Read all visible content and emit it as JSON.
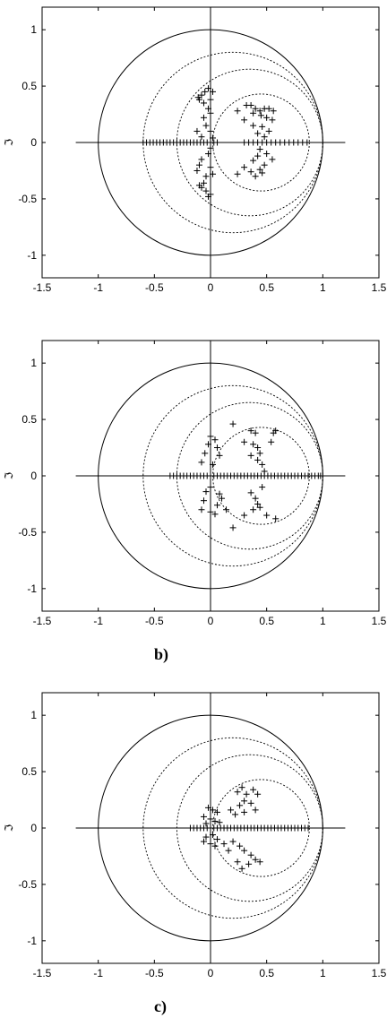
{
  "colors": {
    "axes": "#000000",
    "background": "#ffffff",
    "unit_circle": "#000000",
    "dotted_circles": "#000000",
    "markers": "#000000"
  },
  "captions": {
    "b": "b)",
    "c": "c)"
  },
  "chart_data": [
    {
      "type": "scatter",
      "title": "",
      "xlabel": "",
      "ylabel": "ℑ",
      "xlim": [
        -1.5,
        1.5
      ],
      "ylim": [
        -1.2,
        1.2
      ],
      "x_ticks": [
        "-1.5",
        "-1",
        "-0.5",
        "0",
        "0.5",
        "1",
        "1.5"
      ],
      "y_ticks": [
        "-1",
        "-0.5",
        "0",
        "0.5",
        "1"
      ],
      "marker": "+",
      "grid": false,
      "circles": [
        {
          "cx": 0,
          "cy": 0,
          "r": 1.0,
          "style": "solid"
        },
        {
          "cx": 0.2,
          "cy": 0,
          "r": 0.8,
          "style": "dotted"
        },
        {
          "cx": 0.35,
          "cy": 0,
          "r": 0.65,
          "style": "dotted"
        },
        {
          "cx": 0.45,
          "cy": 0,
          "r": 0.43,
          "style": "dotted"
        }
      ],
      "real_axis_points": [
        -0.6,
        -0.57,
        -0.54,
        -0.51,
        -0.48,
        -0.45,
        -0.42,
        -0.39,
        -0.36,
        -0.33,
        -0.3,
        -0.27,
        -0.24,
        -0.21,
        -0.18,
        -0.15,
        -0.12,
        -0.09,
        -0.06,
        -0.03,
        0.0,
        0.03,
        0.06,
        0.3,
        0.34,
        0.38,
        0.42,
        0.46,
        0.5,
        0.54,
        0.58,
        0.62,
        0.66,
        0.7,
        0.74,
        0.78,
        0.82,
        0.86
      ],
      "points": [
        [
          -0.08,
          0.42
        ],
        [
          -0.05,
          0.45
        ],
        [
          -0.02,
          0.48
        ],
        [
          0.02,
          0.45
        ],
        [
          -0.1,
          0.38
        ],
        [
          -0.06,
          0.35
        ],
        [
          0.0,
          0.38
        ],
        [
          -0.11,
          0.4
        ],
        [
          -0.02,
          0.3
        ],
        [
          0.0,
          0.26
        ],
        [
          -0.06,
          0.22
        ],
        [
          -0.04,
          0.15
        ],
        [
          0.0,
          0.1
        ],
        [
          0.02,
          0.04
        ],
        [
          -0.12,
          0.1
        ],
        [
          -0.08,
          0.05
        ],
        [
          0.0,
          -0.05
        ],
        [
          -0.02,
          -0.1
        ],
        [
          -0.08,
          -0.15
        ],
        [
          -0.1,
          -0.2
        ],
        [
          -0.12,
          -0.25
        ],
        [
          0.0,
          -0.22
        ],
        [
          -0.04,
          -0.3
        ],
        [
          0.02,
          -0.28
        ],
        [
          -0.06,
          -0.36
        ],
        [
          -0.1,
          -0.38
        ],
        [
          -0.04,
          -0.43
        ],
        [
          0.0,
          -0.46
        ],
        [
          -0.08,
          -0.4
        ],
        [
          -0.02,
          -0.48
        ],
        [
          0.36,
          0.33
        ],
        [
          0.4,
          0.3
        ],
        [
          0.44,
          0.28
        ],
        [
          0.48,
          0.3
        ],
        [
          0.38,
          0.26
        ],
        [
          0.45,
          0.24
        ],
        [
          0.3,
          0.2
        ],
        [
          0.5,
          0.22
        ],
        [
          0.55,
          0.2
        ],
        [
          0.38,
          0.15
        ],
        [
          0.46,
          0.14
        ],
        [
          0.52,
          0.1
        ],
        [
          0.42,
          0.08
        ],
        [
          0.48,
          0.05
        ],
        [
          0.44,
          -0.06
        ],
        [
          0.5,
          -0.1
        ],
        [
          0.42,
          -0.12
        ],
        [
          0.55,
          -0.15
        ],
        [
          0.38,
          -0.16
        ],
        [
          0.48,
          -0.2
        ],
        [
          0.3,
          -0.22
        ],
        [
          0.36,
          -0.26
        ],
        [
          0.4,
          -0.3
        ],
        [
          0.46,
          -0.27
        ],
        [
          0.44,
          -0.24
        ],
        [
          0.24,
          -0.28
        ],
        [
          0.24,
          0.28
        ],
        [
          0.32,
          0.33
        ],
        [
          0.52,
          0.3
        ],
        [
          0.56,
          0.28
        ]
      ]
    },
    {
      "type": "scatter",
      "title": "",
      "xlabel": "",
      "ylabel": "ℑ",
      "xlim": [
        -1.5,
        1.5
      ],
      "ylim": [
        -1.2,
        1.2
      ],
      "x_ticks": [
        "-1.5",
        "-1",
        "-0.5",
        "0",
        "0.5",
        "1",
        "1.5"
      ],
      "y_ticks": [
        "-1",
        "-0.5",
        "0",
        "0.5",
        "1"
      ],
      "marker": "+",
      "grid": false,
      "circles": [
        {
          "cx": 0,
          "cy": 0,
          "r": 1.0,
          "style": "solid"
        },
        {
          "cx": 0.2,
          "cy": 0,
          "r": 0.8,
          "style": "dotted"
        },
        {
          "cx": 0.35,
          "cy": 0,
          "r": 0.65,
          "style": "dotted"
        },
        {
          "cx": 0.45,
          "cy": 0,
          "r": 0.43,
          "style": "dotted"
        }
      ],
      "real_axis_points": [
        -0.36,
        -0.33,
        -0.3,
        -0.27,
        -0.24,
        -0.21,
        -0.18,
        -0.15,
        -0.12,
        -0.09,
        -0.06,
        -0.03,
        0.0,
        0.03,
        0.06,
        0.09,
        0.12,
        0.15,
        0.18,
        0.21,
        0.24,
        0.27,
        0.3,
        0.33,
        0.36,
        0.39,
        0.42,
        0.45,
        0.48,
        0.51,
        0.54,
        0.57,
        0.6,
        0.63,
        0.66,
        0.69,
        0.72,
        0.75,
        0.78,
        0.81,
        0.84,
        0.87,
        0.9,
        0.93,
        0.96,
        0.98
      ],
      "points": [
        [
          0.0,
          0.35
        ],
        [
          0.04,
          0.32
        ],
        [
          -0.02,
          0.28
        ],
        [
          0.06,
          0.25
        ],
        [
          -0.05,
          0.2
        ],
        [
          0.08,
          0.18
        ],
        [
          -0.08,
          0.12
        ],
        [
          0.02,
          0.1
        ],
        [
          0.0,
          -0.1
        ],
        [
          -0.04,
          -0.14
        ],
        [
          0.08,
          -0.16
        ],
        [
          -0.06,
          -0.22
        ],
        [
          0.06,
          -0.26
        ],
        [
          0.0,
          -0.32
        ],
        [
          -0.08,
          -0.3
        ],
        [
          0.04,
          -0.34
        ],
        [
          0.2,
          0.46
        ],
        [
          0.36,
          0.4
        ],
        [
          0.4,
          0.38
        ],
        [
          0.3,
          0.3
        ],
        [
          0.38,
          0.28
        ],
        [
          0.42,
          0.25
        ],
        [
          0.44,
          0.2
        ],
        [
          0.36,
          0.18
        ],
        [
          0.42,
          0.14
        ],
        [
          0.46,
          0.1
        ],
        [
          0.48,
          0.04
        ],
        [
          0.58,
          0.4
        ],
        [
          0.56,
          0.38
        ],
        [
          0.54,
          0.3
        ],
        [
          0.36,
          -0.15
        ],
        [
          0.4,
          -0.2
        ],
        [
          0.42,
          -0.25
        ],
        [
          0.38,
          -0.3
        ],
        [
          0.3,
          -0.35
        ],
        [
          0.44,
          -0.28
        ],
        [
          0.5,
          -0.35
        ],
        [
          0.58,
          -0.38
        ],
        [
          0.46,
          -0.1
        ],
        [
          0.2,
          -0.46
        ],
        [
          0.14,
          -0.3
        ],
        [
          0.1,
          -0.2
        ]
      ]
    },
    {
      "type": "scatter",
      "title": "",
      "xlabel": "",
      "ylabel": "ℑ",
      "xlim": [
        -1.5,
        1.5
      ],
      "ylim": [
        -1.2,
        1.2
      ],
      "x_ticks": [
        "-1.5",
        "-1",
        "-0.5",
        "0",
        "0.5",
        "1",
        "1.5"
      ],
      "y_ticks": [
        "-1",
        "-0.5",
        "0",
        "0.5",
        "1"
      ],
      "marker": "+",
      "grid": false,
      "circles": [
        {
          "cx": 0,
          "cy": 0,
          "r": 1.0,
          "style": "solid"
        },
        {
          "cx": 0.2,
          "cy": 0,
          "r": 0.8,
          "style": "dotted"
        },
        {
          "cx": 0.35,
          "cy": 0,
          "r": 0.65,
          "style": "dotted"
        },
        {
          "cx": 0.45,
          "cy": 0,
          "r": 0.43,
          "style": "dotted"
        }
      ],
      "real_axis_points": [
        -0.18,
        -0.15,
        -0.12,
        -0.09,
        -0.06,
        -0.03,
        0.0,
        0.03,
        0.06,
        0.09,
        0.12,
        0.15,
        0.18,
        0.21,
        0.24,
        0.27,
        0.3,
        0.33,
        0.36,
        0.39,
        0.42,
        0.45,
        0.48,
        0.51,
        0.54,
        0.57,
        0.6,
        0.63,
        0.66,
        0.69,
        0.72,
        0.75,
        0.78,
        0.81,
        0.84,
        0.87
      ],
      "points": [
        [
          -0.02,
          0.18
        ],
        [
          0.02,
          0.16
        ],
        [
          0.06,
          0.14
        ],
        [
          -0.06,
          0.1
        ],
        [
          0.0,
          0.08
        ],
        [
          0.04,
          0.06
        ],
        [
          -0.04,
          0.04
        ],
        [
          0.08,
          0.05
        ],
        [
          0.02,
          -0.06
        ],
        [
          -0.04,
          -0.08
        ],
        [
          0.06,
          -0.1
        ],
        [
          0.0,
          -0.14
        ],
        [
          0.04,
          -0.16
        ],
        [
          -0.06,
          -0.12
        ],
        [
          0.24,
          0.32
        ],
        [
          0.28,
          0.36
        ],
        [
          0.32,
          0.3
        ],
        [
          0.38,
          0.34
        ],
        [
          0.42,
          0.3
        ],
        [
          0.3,
          0.24
        ],
        [
          0.36,
          0.22
        ],
        [
          0.26,
          0.2
        ],
        [
          0.18,
          0.16
        ],
        [
          0.22,
          0.12
        ],
        [
          0.3,
          0.14
        ],
        [
          0.4,
          0.16
        ],
        [
          0.2,
          -0.12
        ],
        [
          0.26,
          -0.16
        ],
        [
          0.3,
          -0.2
        ],
        [
          0.36,
          -0.24
        ],
        [
          0.4,
          -0.28
        ],
        [
          0.44,
          -0.3
        ],
        [
          0.34,
          -0.32
        ],
        [
          0.28,
          -0.36
        ],
        [
          0.24,
          -0.3
        ],
        [
          0.16,
          -0.2
        ],
        [
          0.12,
          -0.14
        ]
      ]
    }
  ]
}
